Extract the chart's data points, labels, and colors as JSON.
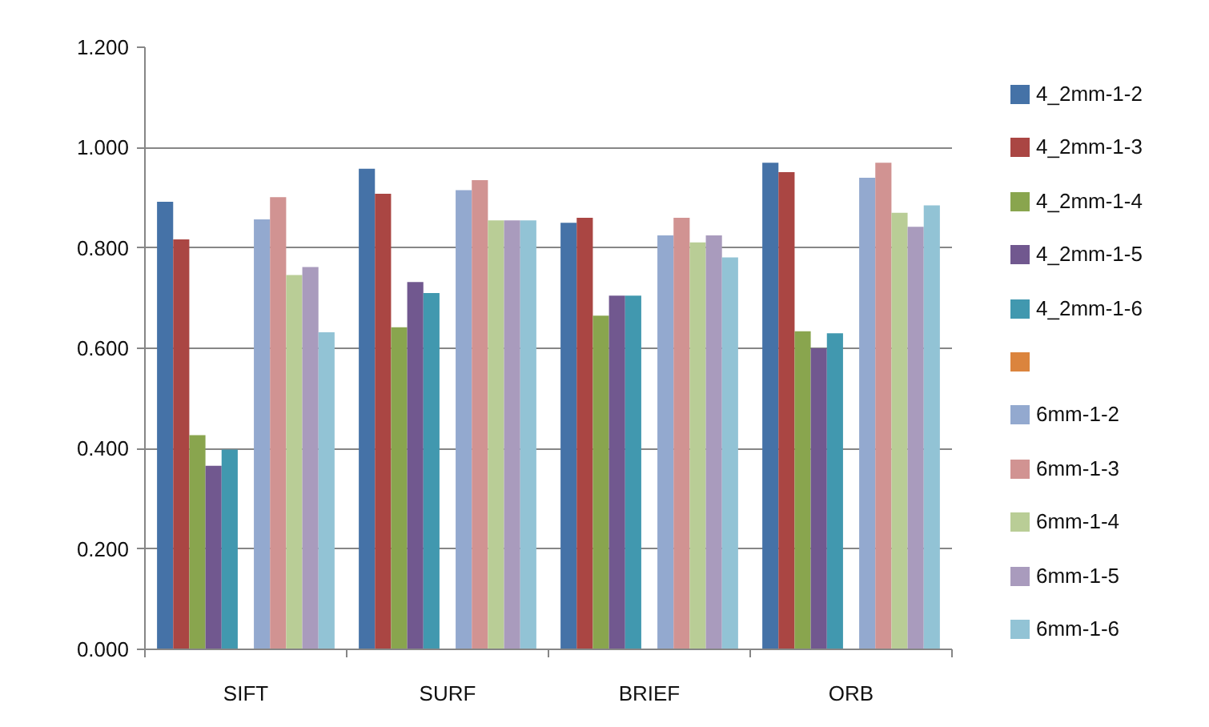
{
  "chart_data": {
    "type": "bar",
    "categories": [
      "SIFT",
      "SURF",
      "BRIEF",
      "ORB"
    ],
    "ylim": [
      0,
      1.2
    ],
    "yticks": [
      {
        "value": 0,
        "label": "0.000"
      },
      {
        "value": 0.2,
        "label": "0.200"
      },
      {
        "value": 0.4,
        "label": "0.400"
      },
      {
        "value": 0.6,
        "label": "0.600"
      },
      {
        "value": 0.8,
        "label": "0.800"
      },
      {
        "value": 1.0,
        "label": "1.000"
      },
      {
        "value": 1.2,
        "label": "1.200"
      }
    ],
    "grid": "y",
    "legend": "right",
    "series": [
      {
        "name": "4_2mm-1-2",
        "color": "#4572a7",
        "values": [
          0.892,
          0.958,
          0.85,
          0.97
        ]
      },
      {
        "name": "4_2mm-1-3",
        "color": "#aa4643",
        "values": [
          0.817,
          0.908,
          0.86,
          0.951
        ]
      },
      {
        "name": "4_2mm-1-4",
        "color": "#89a54e",
        "values": [
          0.427,
          0.642,
          0.665,
          0.634
        ]
      },
      {
        "name": "4_2mm-1-5",
        "color": "#71588f",
        "values": [
          0.366,
          0.732,
          0.705,
          0.6
        ]
      },
      {
        "name": "4_2mm-1-6",
        "color": "#4198af",
        "values": [
          0.398,
          0.71,
          0.705,
          0.63
        ]
      },
      {
        "color": "#db843d",
        "values": [
          null,
          null,
          null,
          null
        ]
      },
      {
        "name": "6mm-1-2",
        "color": "#93a9cf",
        "values": [
          0.857,
          0.915,
          0.825,
          0.94
        ]
      },
      {
        "name": "6mm-1-3",
        "color": "#d19392",
        "values": [
          0.901,
          0.935,
          0.86,
          0.97
        ]
      },
      {
        "name": "6mm-1-4",
        "color": "#b9cd96",
        "values": [
          0.746,
          0.855,
          0.811,
          0.87
        ]
      },
      {
        "name": "6mm-1-5",
        "color": "#a99bbd",
        "values": [
          0.762,
          0.855,
          0.825,
          0.842
        ]
      },
      {
        "name": "6mm-1-6",
        "color": "#92c3d5",
        "values": [
          0.632,
          0.855,
          0.781,
          0.885
        ]
      }
    ]
  }
}
